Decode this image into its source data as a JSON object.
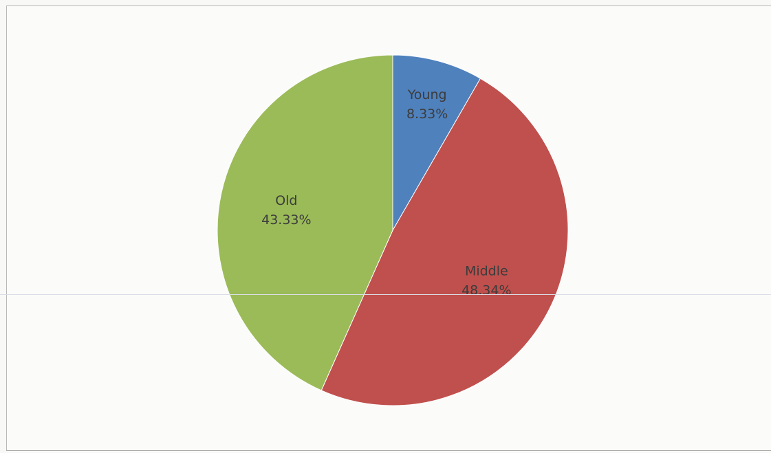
{
  "chart_data": {
    "type": "pie",
    "title": "",
    "start_angle_deg": 0,
    "direction": "clockwise",
    "slices": [
      {
        "label": "Young",
        "value": 8.33,
        "value_label": "8.33%",
        "color": "#4f81bd"
      },
      {
        "label": "Middle",
        "value": 48.34,
        "value_label": "48.34%",
        "color": "#c0504d"
      },
      {
        "label": "Old",
        "value": 43.33,
        "value_label": "43.33%",
        "color": "#9bbb59"
      }
    ],
    "legend": "none",
    "data_labels": "inside"
  }
}
